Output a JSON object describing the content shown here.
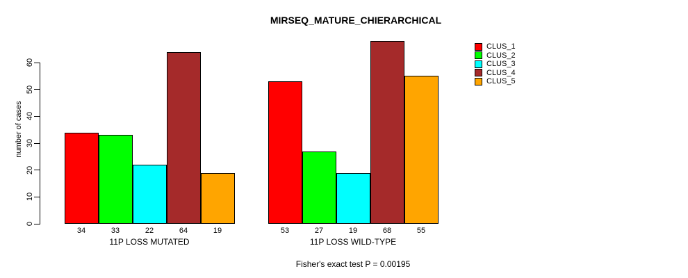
{
  "chart_data": {
    "type": "bar",
    "title": "MIRSEQ_MATURE_CHIERARCHICAL",
    "ylabel": "number of cases",
    "xlabel": "",
    "ylim": [
      0,
      68
    ],
    "yticks": [
      0,
      10,
      20,
      30,
      40,
      50,
      60
    ],
    "grid": false,
    "legend_position": "top-right",
    "series": [
      {
        "name": "CLUS_1",
        "color": "#FF0000"
      },
      {
        "name": "CLUS_2",
        "color": "#00FF00"
      },
      {
        "name": "CLUS_3",
        "color": "#00FFFF"
      },
      {
        "name": "CLUS_4",
        "color": "#A52A2A"
      },
      {
        "name": "CLUS_5",
        "color": "#FFA500"
      }
    ],
    "groups": [
      {
        "label": "11P LOSS MUTATED",
        "values": [
          34,
          33,
          22,
          64,
          19
        ]
      },
      {
        "label": "11P LOSS WILD-TYPE",
        "values": [
          53,
          27,
          19,
          68,
          55
        ]
      }
    ],
    "footnote": "Fisher's exact test P = 0.00195"
  }
}
